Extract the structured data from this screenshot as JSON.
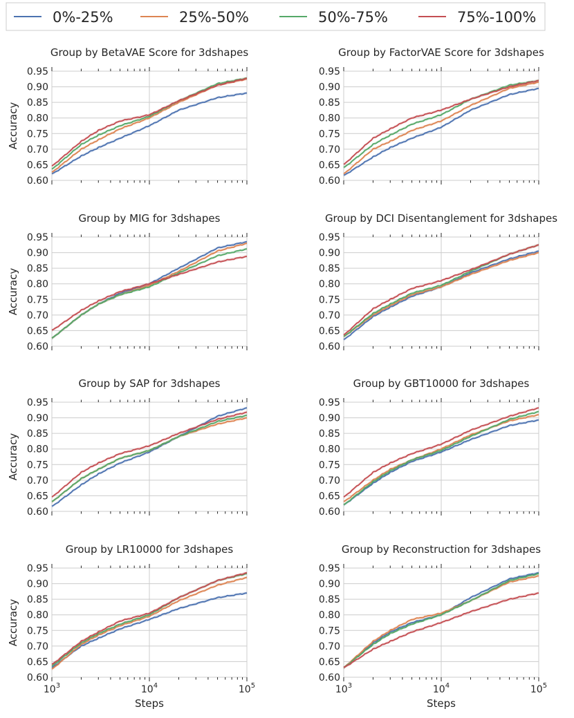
{
  "legend": {
    "entries": [
      {
        "label": "0%-25%",
        "color": "#4c72b0"
      },
      {
        "label": "25%-50%",
        "color": "#dd8452"
      },
      {
        "label": "50%-75%",
        "color": "#55a868"
      },
      {
        "label": "75%-100%",
        "color": "#c44e52"
      }
    ]
  },
  "chart_data": [
    {
      "type": "line",
      "title": "Group by BetaVAE Score for 3dshapes",
      "xlabel": "",
      "ylabel": "Accuracy",
      "xscale": "log",
      "xlim": [
        1000,
        100000
      ],
      "ylim": [
        0.6,
        0.95
      ],
      "yticks": [
        "0.60",
        "0.65",
        "0.70",
        "0.75",
        "0.80",
        "0.85",
        "0.90",
        "0.95"
      ],
      "xticks": [],
      "x": [
        1000,
        2000,
        3000,
        5000,
        10000,
        20000,
        50000,
        100000
      ],
      "series": [
        {
          "name": "0%-25%",
          "values": [
            0.62,
            0.678,
            0.705,
            0.735,
            0.775,
            0.825,
            0.865,
            0.88
          ]
        },
        {
          "name": "25%-50%",
          "values": [
            0.625,
            0.7,
            0.73,
            0.765,
            0.8,
            0.85,
            0.905,
            0.925
          ]
        },
        {
          "name": "50%-75%",
          "values": [
            0.635,
            0.715,
            0.745,
            0.775,
            0.805,
            0.855,
            0.91,
            0.928
          ]
        },
        {
          "name": "75%-100%",
          "values": [
            0.645,
            0.725,
            0.76,
            0.79,
            0.81,
            0.855,
            0.905,
            0.927
          ]
        }
      ]
    },
    {
      "type": "line",
      "title": "Group by FactorVAE Score for 3dshapes",
      "xlabel": "",
      "ylabel": "",
      "xscale": "log",
      "xlim": [
        1000,
        100000
      ],
      "ylim": [
        0.6,
        0.95
      ],
      "yticks": [
        "0.60",
        "0.65",
        "0.70",
        "0.75",
        "0.80",
        "0.85",
        "0.90",
        "0.95"
      ],
      "xticks": [],
      "x": [
        1000,
        2000,
        3000,
        5000,
        10000,
        20000,
        50000,
        100000
      ],
      "series": [
        {
          "name": "0%-25%",
          "values": [
            0.615,
            0.675,
            0.705,
            0.735,
            0.77,
            0.825,
            0.875,
            0.895
          ]
        },
        {
          "name": "25%-50%",
          "values": [
            0.62,
            0.7,
            0.725,
            0.76,
            0.79,
            0.84,
            0.895,
            0.915
          ]
        },
        {
          "name": "50%-75%",
          "values": [
            0.64,
            0.715,
            0.745,
            0.78,
            0.81,
            0.86,
            0.905,
            0.92
          ]
        },
        {
          "name": "75%-100%",
          "values": [
            0.65,
            0.735,
            0.765,
            0.8,
            0.825,
            0.86,
            0.9,
            0.92
          ]
        }
      ]
    },
    {
      "type": "line",
      "title": "Group by MIG for 3dshapes",
      "xlabel": "",
      "ylabel": "Accuracy",
      "xscale": "log",
      "xlim": [
        1000,
        100000
      ],
      "ylim": [
        0.6,
        0.95
      ],
      "yticks": [
        "0.60",
        "0.65",
        "0.70",
        "0.75",
        "0.80",
        "0.85",
        "0.90",
        "0.95"
      ],
      "xticks": [],
      "x": [
        1000,
        2000,
        3000,
        5000,
        10000,
        20000,
        50000,
        100000
      ],
      "series": [
        {
          "name": "0%-25%",
          "values": [
            0.625,
            0.7,
            0.735,
            0.77,
            0.8,
            0.85,
            0.915,
            0.935
          ]
        },
        {
          "name": "25%-50%",
          "values": [
            0.625,
            0.7,
            0.735,
            0.765,
            0.795,
            0.84,
            0.905,
            0.93
          ]
        },
        {
          "name": "50%-75%",
          "values": [
            0.625,
            0.7,
            0.735,
            0.765,
            0.79,
            0.835,
            0.89,
            0.912
          ]
        },
        {
          "name": "75%-100%",
          "values": [
            0.65,
            0.715,
            0.745,
            0.775,
            0.8,
            0.83,
            0.87,
            0.888
          ]
        }
      ]
    },
    {
      "type": "line",
      "title": "Group by DCI Disentanglement for 3dshapes",
      "xlabel": "",
      "ylabel": "",
      "xscale": "log",
      "xlim": [
        1000,
        100000
      ],
      "ylim": [
        0.6,
        0.95
      ],
      "yticks": [
        "0.60",
        "0.65",
        "0.70",
        "0.75",
        "0.80",
        "0.85",
        "0.90",
        "0.95"
      ],
      "xticks": [],
      "x": [
        1000,
        2000,
        3000,
        5000,
        10000,
        20000,
        50000,
        100000
      ],
      "series": [
        {
          "name": "0%-25%",
          "values": [
            0.62,
            0.695,
            0.725,
            0.76,
            0.79,
            0.835,
            0.88,
            0.905
          ]
        },
        {
          "name": "25%-50%",
          "values": [
            0.63,
            0.7,
            0.73,
            0.765,
            0.79,
            0.83,
            0.875,
            0.9
          ]
        },
        {
          "name": "50%-75%",
          "values": [
            0.63,
            0.705,
            0.735,
            0.77,
            0.795,
            0.84,
            0.895,
            0.925
          ]
        },
        {
          "name": "75%-100%",
          "values": [
            0.635,
            0.72,
            0.75,
            0.785,
            0.81,
            0.845,
            0.895,
            0.925
          ]
        }
      ]
    },
    {
      "type": "line",
      "title": "Group by SAP for 3dshapes",
      "xlabel": "",
      "ylabel": "Accuracy",
      "xscale": "log",
      "xlim": [
        1000,
        100000
      ],
      "ylim": [
        0.6,
        0.95
      ],
      "yticks": [
        "0.60",
        "0.65",
        "0.70",
        "0.75",
        "0.80",
        "0.85",
        "0.90",
        "0.95"
      ],
      "xticks": [],
      "x": [
        1000,
        2000,
        3000,
        5000,
        10000,
        20000,
        50000,
        100000
      ],
      "series": [
        {
          "name": "0%-25%",
          "values": [
            0.615,
            0.685,
            0.72,
            0.755,
            0.79,
            0.84,
            0.905,
            0.932
          ]
        },
        {
          "name": "25%-50%",
          "values": [
            0.63,
            0.705,
            0.735,
            0.77,
            0.795,
            0.84,
            0.88,
            0.9
          ]
        },
        {
          "name": "50%-75%",
          "values": [
            0.63,
            0.705,
            0.735,
            0.77,
            0.795,
            0.84,
            0.888,
            0.908
          ]
        },
        {
          "name": "75%-100%",
          "values": [
            0.645,
            0.725,
            0.755,
            0.785,
            0.81,
            0.85,
            0.895,
            0.918
          ]
        }
      ]
    },
    {
      "type": "line",
      "title": "Group by GBT10000 for 3dshapes",
      "xlabel": "",
      "ylabel": "",
      "xscale": "log",
      "xlim": [
        1000,
        100000
      ],
      "ylim": [
        0.6,
        0.95
      ],
      "yticks": [
        "0.60",
        "0.65",
        "0.70",
        "0.75",
        "0.80",
        "0.85",
        "0.90",
        "0.95"
      ],
      "xticks": [],
      "x": [
        1000,
        2000,
        3000,
        5000,
        10000,
        20000,
        50000,
        100000
      ],
      "series": [
        {
          "name": "0%-25%",
          "values": [
            0.62,
            0.69,
            0.725,
            0.76,
            0.79,
            0.83,
            0.875,
            0.893
          ]
        },
        {
          "name": "25%-50%",
          "values": [
            0.63,
            0.7,
            0.735,
            0.765,
            0.8,
            0.845,
            0.89,
            0.91
          ]
        },
        {
          "name": "50%-75%",
          "values": [
            0.62,
            0.695,
            0.73,
            0.765,
            0.795,
            0.84,
            0.895,
            0.92
          ]
        },
        {
          "name": "75%-100%",
          "values": [
            0.645,
            0.725,
            0.755,
            0.785,
            0.815,
            0.86,
            0.905,
            0.932
          ]
        }
      ]
    },
    {
      "type": "line",
      "title": "Group by LR10000 for 3dshapes",
      "xlabel": "Steps",
      "ylabel": "Accuracy",
      "xscale": "log",
      "xlim": [
        1000,
        100000
      ],
      "ylim": [
        0.6,
        0.95
      ],
      "yticks": [
        "0.60",
        "0.65",
        "0.70",
        "0.75",
        "0.80",
        "0.85",
        "0.90",
        "0.95"
      ],
      "xticks": [
        {
          "base": "10",
          "exp": "3"
        },
        {
          "base": "10",
          "exp": "4"
        },
        {
          "base": "10",
          "exp": "5"
        }
      ],
      "x": [
        1000,
        2000,
        3000,
        5000,
        10000,
        20000,
        50000,
        100000
      ],
      "series": [
        {
          "name": "0%-25%",
          "values": [
            0.63,
            0.7,
            0.725,
            0.755,
            0.785,
            0.82,
            0.855,
            0.87
          ]
        },
        {
          "name": "25%-50%",
          "values": [
            0.625,
            0.705,
            0.735,
            0.765,
            0.795,
            0.845,
            0.895,
            0.92
          ]
        },
        {
          "name": "50%-75%",
          "values": [
            0.635,
            0.71,
            0.74,
            0.77,
            0.8,
            0.855,
            0.91,
            0.932
          ]
        },
        {
          "name": "75%-100%",
          "values": [
            0.64,
            0.715,
            0.745,
            0.78,
            0.805,
            0.855,
            0.91,
            0.935
          ]
        }
      ]
    },
    {
      "type": "line",
      "title": "Group by Reconstruction for 3dshapes",
      "xlabel": "Steps",
      "ylabel": "",
      "xscale": "log",
      "xlim": [
        1000,
        100000
      ],
      "ylim": [
        0.6,
        0.95
      ],
      "yticks": [
        "0.60",
        "0.65",
        "0.70",
        "0.75",
        "0.80",
        "0.85",
        "0.90",
        "0.95"
      ],
      "xticks": [
        {
          "base": "10",
          "exp": "3"
        },
        {
          "base": "10",
          "exp": "4"
        },
        {
          "base": "10",
          "exp": "5"
        }
      ],
      "x": [
        1000,
        2000,
        3000,
        5000,
        10000,
        20000,
        50000,
        100000
      ],
      "series": [
        {
          "name": "0%-25%",
          "values": [
            0.63,
            0.71,
            0.745,
            0.775,
            0.8,
            0.855,
            0.915,
            0.935
          ]
        },
        {
          "name": "25%-50%",
          "values": [
            0.63,
            0.715,
            0.75,
            0.785,
            0.805,
            0.845,
            0.905,
            0.925
          ]
        },
        {
          "name": "50%-75%",
          "values": [
            0.63,
            0.705,
            0.74,
            0.77,
            0.8,
            0.845,
            0.91,
            0.932
          ]
        },
        {
          "name": "75%-100%",
          "values": [
            0.63,
            0.69,
            0.715,
            0.745,
            0.775,
            0.81,
            0.85,
            0.87
          ]
        }
      ]
    }
  ]
}
